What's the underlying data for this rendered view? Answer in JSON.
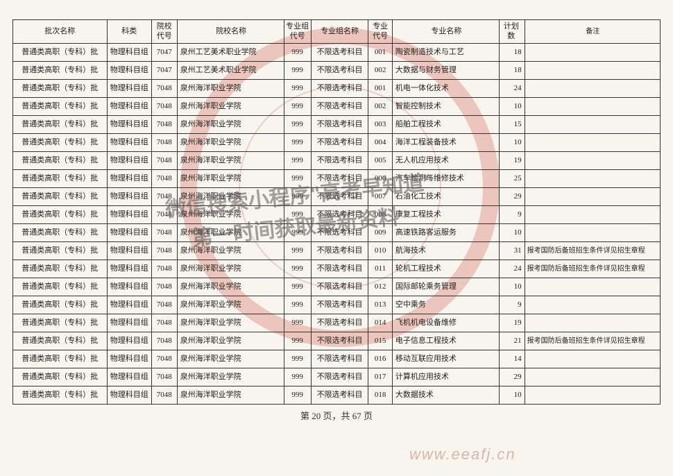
{
  "headers": {
    "batch": "批次名称",
    "subject": "科类",
    "school_code": "院校代号",
    "school_name": "院校名称",
    "group_code": "专业组代号",
    "group_name": "专业组名称",
    "major_code": "专业代号",
    "major_name": "专业名称",
    "plan": "计划数",
    "note": "备注"
  },
  "rows": [
    {
      "batch": "普通类高职（专科）批",
      "subject": "物理科目组",
      "scode": "7047",
      "sname": "泉州工艺美术职业学院",
      "gcode": "999",
      "gname": "不限选考科目",
      "mcode": "001",
      "mname": "陶瓷制造技术与工艺",
      "plan": "18",
      "note": ""
    },
    {
      "batch": "普通类高职（专科）批",
      "subject": "物理科目组",
      "scode": "7047",
      "sname": "泉州工艺美术职业学院",
      "gcode": "999",
      "gname": "不限选考科目",
      "mcode": "002",
      "mname": "大数据与财务管理",
      "plan": "18",
      "note": ""
    },
    {
      "batch": "普通类高职（专科）批",
      "subject": "物理科目组",
      "scode": "7048",
      "sname": "泉州海洋职业学院",
      "gcode": "999",
      "gname": "不限选考科目",
      "mcode": "001",
      "mname": "机电一体化技术",
      "plan": "24",
      "note": ""
    },
    {
      "batch": "普通类高职（专科）批",
      "subject": "物理科目组",
      "scode": "7048",
      "sname": "泉州海洋职业学院",
      "gcode": "999",
      "gname": "不限选考科目",
      "mcode": "002",
      "mname": "智能控制技术",
      "plan": "10",
      "note": ""
    },
    {
      "batch": "普通类高职（专科）批",
      "subject": "物理科目组",
      "scode": "7048",
      "sname": "泉州海洋职业学院",
      "gcode": "999",
      "gname": "不限选考科目",
      "mcode": "003",
      "mname": "船舶工程技术",
      "plan": "15",
      "note": ""
    },
    {
      "batch": "普通类高职（专科）批",
      "subject": "物理科目组",
      "scode": "7048",
      "sname": "泉州海洋职业学院",
      "gcode": "999",
      "gname": "不限选考科目",
      "mcode": "004",
      "mname": "海洋工程装备技术",
      "plan": "10",
      "note": ""
    },
    {
      "batch": "普通类高职（专科）批",
      "subject": "物理科目组",
      "scode": "7048",
      "sname": "泉州海洋职业学院",
      "gcode": "999",
      "gname": "不限选考科目",
      "mcode": "005",
      "mname": "无人机应用技术",
      "plan": "19",
      "note": ""
    },
    {
      "batch": "普通类高职（专科）批",
      "subject": "物理科目组",
      "scode": "7048",
      "sname": "泉州海洋职业学院",
      "gcode": "999",
      "gname": "不限选考科目",
      "mcode": "006",
      "mname": "汽车检测与维修技术",
      "plan": "25",
      "note": ""
    },
    {
      "batch": "普通类高职（专科）批",
      "subject": "物理科目组",
      "scode": "7048",
      "sname": "泉州海洋职业学院",
      "gcode": "999",
      "gname": "不限选考科目",
      "mcode": "007",
      "mname": "石油化工技术",
      "plan": "29",
      "note": ""
    },
    {
      "batch": "普通类高职（专科）批",
      "subject": "物理科目组",
      "scode": "7048",
      "sname": "泉州海洋职业学院",
      "gcode": "999",
      "gname": "不限选考科目",
      "mcode": "008",
      "mname": "康复工程技术",
      "plan": "9",
      "note": ""
    },
    {
      "batch": "普通类高职（专科）批",
      "subject": "物理科目组",
      "scode": "7048",
      "sname": "泉州海洋职业学院",
      "gcode": "999",
      "gname": "不限选考科目",
      "mcode": "009",
      "mname": "高速铁路客运服务",
      "plan": "10",
      "note": ""
    },
    {
      "batch": "普通类高职（专科）批",
      "subject": "物理科目组",
      "scode": "7048",
      "sname": "泉州海洋职业学院",
      "gcode": "999",
      "gname": "不限选考科目",
      "mcode": "010",
      "mname": "航海技术",
      "plan": "31",
      "note": "报考国防后备班招生条件详见招生章程"
    },
    {
      "batch": "普通类高职（专科）批",
      "subject": "物理科目组",
      "scode": "7048",
      "sname": "泉州海洋职业学院",
      "gcode": "999",
      "gname": "不限选考科目",
      "mcode": "011",
      "mname": "轮机工程技术",
      "plan": "24",
      "note": "报考国防后备班招生条件详见招生章程"
    },
    {
      "batch": "普通类高职（专科）批",
      "subject": "物理科目组",
      "scode": "7048",
      "sname": "泉州海洋职业学院",
      "gcode": "999",
      "gname": "不限选考科目",
      "mcode": "012",
      "mname": "国际邮轮乘务管理",
      "plan": "10",
      "note": ""
    },
    {
      "batch": "普通类高职（专科）批",
      "subject": "物理科目组",
      "scode": "7048",
      "sname": "泉州海洋职业学院",
      "gcode": "999",
      "gname": "不限选考科目",
      "mcode": "013",
      "mname": "空中乘务",
      "plan": "9",
      "note": ""
    },
    {
      "batch": "普通类高职（专科）批",
      "subject": "物理科目组",
      "scode": "7048",
      "sname": "泉州海洋职业学院",
      "gcode": "999",
      "gname": "不限选考科目",
      "mcode": "014",
      "mname": "飞机机电设备维修",
      "plan": "19",
      "note": ""
    },
    {
      "batch": "普通类高职（专科）批",
      "subject": "物理科目组",
      "scode": "7048",
      "sname": "泉州海洋职业学院",
      "gcode": "999",
      "gname": "不限选考科目",
      "mcode": "015",
      "mname": "电子信息工程技术",
      "plan": "21",
      "note": "报考国防后备班招生条件详见招生章程"
    },
    {
      "batch": "普通类高职（专科）批",
      "subject": "物理科目组",
      "scode": "7048",
      "sname": "泉州海洋职业学院",
      "gcode": "999",
      "gname": "不限选考科目",
      "mcode": "016",
      "mname": "移动互联应用技术",
      "plan": "14",
      "note": ""
    },
    {
      "batch": "普通类高职（专科）批",
      "subject": "物理科目组",
      "scode": "7048",
      "sname": "泉州海洋职业学院",
      "gcode": "999",
      "gname": "不限选考科目",
      "mcode": "017",
      "mname": "计算机应用技术",
      "plan": "29",
      "note": ""
    },
    {
      "batch": "普通类高职（专科）批",
      "subject": "物理科目组",
      "scode": "7048",
      "sname": "泉州海洋职业学院",
      "gcode": "999",
      "gname": "不限选考科目",
      "mcode": "018",
      "mname": "大数据技术",
      "plan": "10",
      "note": ""
    }
  ],
  "pager": "第 20 页，共 67 页",
  "watermark_line1": "微信搜索小程序\"高考早知道\"",
  "watermark_line2": "第一时间获取最新资料",
  "url_watermark": "www.eeafj.cn"
}
